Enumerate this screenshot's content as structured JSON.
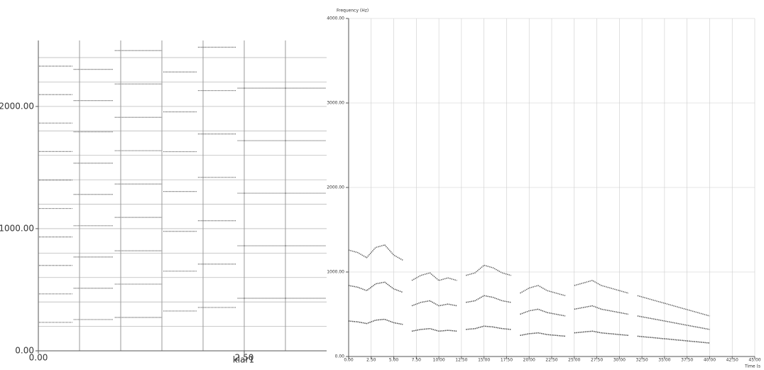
{
  "chart_data": [
    {
      "type": "step",
      "xlabel": "klar1",
      "edges": [
        0,
        0.42,
        0.92,
        1.51,
        1.93,
        2.41,
        3.5
      ],
      "series": [
        {
          "color": "#555555",
          "values": [
            233,
            256,
            273,
            326,
            355,
            430
          ]
        },
        {
          "color": "#555555",
          "values": [
            466,
            512,
            546,
            652,
            710,
            860
          ]
        },
        {
          "color": "#555555",
          "values": [
            699,
            768,
            819,
            978,
            1065,
            1290
          ]
        },
        {
          "color": "#555555",
          "values": [
            932,
            1024,
            1092,
            1304,
            1420,
            1720
          ]
        },
        {
          "color": "#555555",
          "values": [
            1165,
            1280,
            1365,
            1630,
            1775,
            2150
          ]
        },
        {
          "color": "#555555",
          "values": [
            1398,
            1536,
            1638,
            1956,
            2130,
            null
          ]
        },
        {
          "color": "#555555",
          "values": [
            1631,
            1792,
            1911,
            2282,
            2485,
            null
          ]
        },
        {
          "color": "#555555",
          "values": [
            1864,
            2048,
            2184,
            null,
            null,
            null
          ]
        },
        {
          "color": "#555555",
          "values": [
            2097,
            2304,
            2457,
            null,
            null,
            null
          ]
        },
        {
          "color": "#555555",
          "values": [
            2330,
            null,
            null,
            null,
            null,
            null
          ]
        }
      ],
      "xlim": [
        0,
        3.5
      ],
      "ylim": [
        0,
        2540
      ],
      "xticks": [
        {
          "value": 0,
          "label": "0.00"
        },
        {
          "value": 2.5,
          "label": "2.50"
        }
      ],
      "yticks": [
        {
          "value": 0,
          "label": "0.00"
        },
        {
          "value": 1000,
          "label": "1000.00"
        },
        {
          "value": 2000,
          "label": "2000.00"
        }
      ],
      "xgrid": [
        0.5,
        1,
        1.5,
        2,
        2.5,
        3
      ],
      "ygrid": [
        200,
        400,
        600,
        800,
        1000,
        1200,
        1400,
        1600,
        1800,
        2000,
        2200,
        2400
      ]
    },
    {
      "type": "line",
      "ylabel": "Frequency (Hz)",
      "xlabel": "Time (s",
      "x": [
        0,
        1,
        2,
        3,
        4,
        5,
        6,
        6.5,
        7,
        8,
        9,
        10,
        11,
        12,
        12.5,
        13,
        14,
        15,
        16,
        17,
        18,
        18.5,
        19,
        20,
        21,
        22,
        23,
        24,
        24.5,
        25,
        26,
        27,
        28,
        29,
        30,
        31,
        31.5,
        32,
        33,
        34,
        35,
        36,
        37,
        38,
        39,
        40
      ],
      "series": [
        {
          "color": "#444444",
          "values": [
            420,
            410,
            390,
            430,
            440,
            400,
            380,
            null,
            300,
            320,
            330,
            300,
            310,
            300,
            null,
            320,
            330,
            360,
            350,
            330,
            320,
            null,
            250,
            270,
            280,
            260,
            250,
            240,
            null,
            280,
            290,
            300,
            280,
            270,
            260,
            250,
            null,
            240,
            230,
            220,
            210,
            200,
            190,
            180,
            170,
            160
          ]
        },
        {
          "color": "#555555",
          "values": [
            840,
            820,
            780,
            860,
            880,
            800,
            760,
            null,
            600,
            640,
            660,
            600,
            620,
            600,
            null,
            640,
            660,
            720,
            700,
            660,
            640,
            null,
            500,
            540,
            560,
            520,
            500,
            480,
            null,
            560,
            580,
            600,
            560,
            540,
            520,
            500,
            null,
            480,
            460,
            440,
            420,
            400,
            380,
            360,
            340,
            320
          ]
        },
        {
          "color": "#666666",
          "values": [
            1260,
            1230,
            1170,
            1290,
            1320,
            1200,
            1140,
            null,
            900,
            960,
            990,
            900,
            930,
            900,
            null,
            960,
            990,
            1080,
            1050,
            990,
            960,
            null,
            750,
            810,
            840,
            780,
            750,
            720,
            null,
            840,
            870,
            900,
            840,
            810,
            780,
            750,
            null,
            720,
            690,
            660,
            630,
            600,
            570,
            540,
            510,
            480
          ]
        }
      ],
      "xlim": [
        0,
        45
      ],
      "ylim": [
        0,
        4000
      ],
      "xticks": [
        {
          "value": 0,
          "label": "0.00"
        },
        {
          "value": 2.5,
          "label": "2.50"
        },
        {
          "value": 5,
          "label": "5.00"
        },
        {
          "value": 7.5,
          "label": "7.50"
        },
        {
          "value": 10,
          "label": "10.00"
        },
        {
          "value": 12.5,
          "label": "12.50"
        },
        {
          "value": 15,
          "label": "15.00"
        },
        {
          "value": 17.5,
          "label": "17.50"
        },
        {
          "value": 20,
          "label": "20.00"
        },
        {
          "value": 22.5,
          "label": "22.50"
        },
        {
          "value": 25,
          "label": "25.00"
        },
        {
          "value": 27.5,
          "label": "27.50"
        },
        {
          "value": 30,
          "label": "30.00"
        },
        {
          "value": 32.5,
          "label": "32.50"
        },
        {
          "value": 35,
          "label": "35.00"
        },
        {
          "value": 37.5,
          "label": "37.50"
        },
        {
          "value": 40,
          "label": "40.00"
        },
        {
          "value": 42.5,
          "label": "42.50"
        },
        {
          "value": 45,
          "label": "45.00"
        }
      ],
      "yticks": [
        {
          "value": 0,
          "label": "0.00"
        },
        {
          "value": 1000,
          "label": "1000.00"
        },
        {
          "value": 2000,
          "label": "2000.00"
        },
        {
          "value": 3000,
          "label": "3000.00"
        },
        {
          "value": 4000,
          "label": "4000.00"
        }
      ]
    }
  ]
}
